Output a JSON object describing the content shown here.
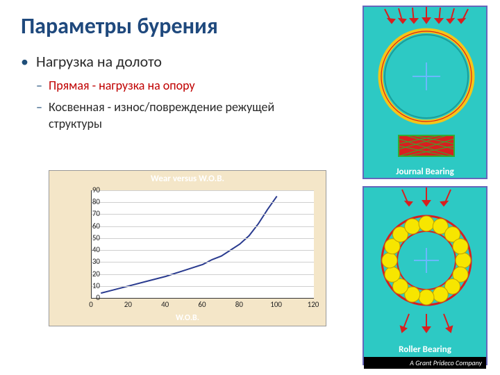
{
  "title": "Параметры бурения",
  "bullets": {
    "main": "Нагрузка на долото",
    "sub1": "Прямая  - нагрузка на опору",
    "sub2": "Косвенная - износ/повреждение режущей структуры"
  },
  "chart": {
    "type": "line",
    "title": "Wear versus W.O.B.",
    "xlabel": "W.O.B.",
    "xlim": [
      0,
      120
    ],
    "ylim": [
      0,
      90
    ],
    "xtick_step": 20,
    "ytick_step": 10,
    "background_color": "#f4e6c8",
    "plot_bg": "#ffffff",
    "grid_color": "#cfcfcf",
    "title_color": "#ffffff",
    "xlabel_color": "#ffffff",
    "line_color": "#2a3b8f",
    "line_width": 2,
    "data": {
      "x": [
        5,
        10,
        20,
        30,
        40,
        50,
        60,
        65,
        70,
        75,
        80,
        85,
        90,
        95,
        100
      ],
      "y": [
        4,
        6,
        10,
        14,
        18,
        23,
        28,
        32,
        35,
        40,
        45,
        52,
        62,
        74,
        85
      ]
    }
  },
  "right": {
    "top": {
      "caption": "Journal Bearing",
      "bg": "#2dc9c4",
      "ring_outer": "#f5c518",
      "ring_inner": "#1a9e9a",
      "arrows": "#d81f1f",
      "crosshair": "#6bb8ff",
      "hash_box": "#d81f1f"
    },
    "bottom": {
      "caption": "Roller Bearing",
      "bg": "#2dc9c4",
      "ring": "#d81f1f",
      "balls": "#f7e600",
      "arrows": "#d81f1f",
      "crosshair": "#6bb8ff",
      "brand": "A Grant Prideco Company"
    }
  }
}
